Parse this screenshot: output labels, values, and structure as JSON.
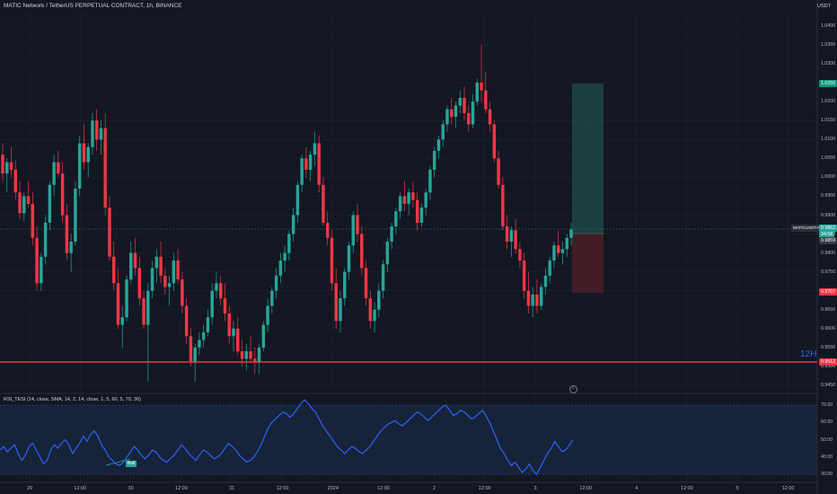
{
  "header": {
    "title": "MATIC Network / TetherUS PERPETUAL CONTRACT, 1h, BINANCE",
    "currency": "USDT"
  },
  "colors": {
    "background": "#131722",
    "up": "#26a69a",
    "down": "#f23645",
    "rsi_line": "#2962ff",
    "support_line": "#f23645",
    "target_zone": "#1e4d4a",
    "stop_zone": "#4a1f26"
  },
  "price_axis": {
    "ticks": [
      "1.0400",
      "1.0350",
      "1.0300",
      "1.0250",
      "1.0200",
      "1.0150",
      "1.0100",
      "1.0050",
      "1.0000",
      "0.9950",
      "0.9900",
      "0.9850",
      "0.9800",
      "0.9750",
      "0.9700",
      "0.9650",
      "0.9600",
      "0.9550",
      "0.9500",
      "0.9450"
    ],
    "target_label": "1.0250",
    "symbol_label": "MATICUSDT.P",
    "current_price": "0.9862",
    "countdown": "34:58",
    "entry_label": "0.9859",
    "stop_label": "0.9707",
    "support_label": "0.9512"
  },
  "time_axis": {
    "ticks": [
      "29",
      "12:00",
      "30",
      "12:00",
      "31",
      "12:00",
      "2024",
      "12:00",
      "2",
      "12:00",
      "3",
      "12:00",
      "4",
      "12:00",
      "5",
      "12:00"
    ]
  },
  "annotation": {
    "timeframe_tag": "12H",
    "bull_label": "Bull",
    "flag_glyph": "F"
  },
  "rsi": {
    "title": "RSI_TESI (14, close, SMA, 14, 2, 14, close, 1, 5, 60, 5, 70, 30)",
    "ticks": [
      "70.00",
      "60.00",
      "50.00",
      "40.00",
      "30.00"
    ],
    "values": [
      44,
      46,
      43,
      45,
      47,
      42,
      38,
      41,
      46,
      48,
      44,
      40,
      36,
      38,
      44,
      47,
      45,
      48,
      50,
      47,
      42,
      45,
      48,
      52,
      49,
      53,
      55,
      52,
      47,
      44,
      40,
      38,
      36,
      35,
      37,
      40,
      43,
      46,
      44,
      41,
      39,
      41,
      44,
      43,
      40,
      38,
      37,
      39,
      41,
      44,
      47,
      45,
      42,
      40,
      38,
      41,
      44,
      43,
      41,
      39,
      40,
      42,
      45,
      48,
      46,
      44,
      41,
      39,
      37,
      38,
      40,
      43,
      47,
      52,
      57,
      60,
      62,
      64,
      66,
      65,
      63,
      65,
      68,
      71,
      73,
      71,
      68,
      66,
      62,
      58,
      55,
      52,
      49,
      46,
      44,
      42,
      44,
      46,
      45,
      43,
      42,
      44,
      46,
      49,
      52,
      55,
      57,
      59,
      60,
      61,
      59,
      58,
      60,
      62,
      64,
      66,
      65,
      63,
      61,
      63,
      65,
      67,
      69,
      70,
      67,
      64,
      65,
      67,
      66,
      64,
      62,
      63,
      65,
      67,
      64,
      60,
      55,
      50,
      45,
      42,
      38,
      35,
      37,
      34,
      31,
      33,
      36,
      32,
      30,
      34,
      38,
      42,
      45,
      49,
      46,
      43,
      44,
      47,
      50
    ]
  },
  "candles": [
    [
      1.006,
      1.009,
      0.999,
      1.001
    ],
    [
      1.001,
      1.005,
      0.996,
      1.004
    ],
    [
      1.004,
      1.008,
      1.0,
      1.002
    ],
    [
      1.002,
      1.0045,
      0.994,
      0.996
    ],
    [
      0.996,
      0.999,
      0.989,
      0.9905
    ],
    [
      0.9905,
      0.996,
      0.9885,
      0.995
    ],
    [
      0.995,
      0.999,
      0.992,
      0.993
    ],
    [
      0.993,
      0.996,
      0.982,
      0.984
    ],
    [
      0.984,
      0.987,
      0.97,
      0.972
    ],
    [
      0.972,
      0.98,
      0.97,
      0.979
    ],
    [
      0.979,
      0.99,
      0.977,
      0.988
    ],
    [
      0.988,
      0.999,
      0.986,
      0.998
    ],
    [
      0.998,
      1.006,
      0.995,
      1.004
    ],
    [
      1.004,
      1.007,
      1.0,
      1.001
    ],
    [
      1.001,
      1.004,
      0.988,
      0.99
    ],
    [
      0.99,
      0.993,
      0.978,
      0.98
    ],
    [
      0.98,
      0.985,
      0.975,
      0.983
    ],
    [
      0.983,
      0.999,
      0.982,
      0.997
    ],
    [
      0.997,
      1.011,
      0.995,
      1.009
    ],
    [
      1.009,
      1.014,
      1.002,
      1.004
    ],
    [
      1.004,
      1.009,
      1.0,
      1.008
    ],
    [
      1.008,
      1.017,
      1.006,
      1.015
    ],
    [
      1.015,
      1.018,
      1.007,
      1.01
    ],
    [
      1.01,
      1.015,
      1.006,
      1.013
    ],
    [
      1.013,
      1.017,
      0.99,
      0.992
    ],
    [
      0.992,
      0.995,
      0.978,
      0.979
    ],
    [
      0.979,
      0.983,
      0.97,
      0.972
    ],
    [
      0.972,
      0.976,
      0.96,
      0.961
    ],
    [
      0.961,
      0.966,
      0.955,
      0.963
    ],
    [
      0.963,
      0.974,
      0.962,
      0.973
    ],
    [
      0.973,
      0.983,
      0.972,
      0.98
    ],
    [
      0.98,
      0.984,
      0.974,
      0.976
    ],
    [
      0.976,
      0.979,
      0.966,
      0.968
    ],
    [
      0.968,
      0.97,
      0.96,
      0.961
    ],
    [
      0.961,
      0.972,
      0.946,
      0.97
    ],
    [
      0.97,
      0.978,
      0.968,
      0.976
    ],
    [
      0.976,
      0.981,
      0.972,
      0.979
    ],
    [
      0.979,
      0.983,
      0.972,
      0.974
    ],
    [
      0.974,
      0.976,
      0.969,
      0.971
    ],
    [
      0.971,
      0.974,
      0.966,
      0.972
    ],
    [
      0.972,
      0.98,
      0.97,
      0.978
    ],
    [
      0.978,
      0.981,
      0.972,
      0.973
    ],
    [
      0.973,
      0.975,
      0.964,
      0.966
    ],
    [
      0.966,
      0.968,
      0.956,
      0.958
    ],
    [
      0.958,
      0.96,
      0.95,
      0.951
    ],
    [
      0.951,
      0.956,
      0.946,
      0.955
    ],
    [
      0.955,
      0.959,
      0.953,
      0.957
    ],
    [
      0.957,
      0.961,
      0.955,
      0.959
    ],
    [
      0.959,
      0.965,
      0.958,
      0.963
    ],
    [
      0.963,
      0.972,
      0.961,
      0.97
    ],
    [
      0.97,
      0.975,
      0.968,
      0.972
    ],
    [
      0.972,
      0.974,
      0.966,
      0.968
    ],
    [
      0.968,
      0.972,
      0.962,
      0.964
    ],
    [
      0.964,
      0.966,
      0.956,
      0.958
    ],
    [
      0.958,
      0.962,
      0.954,
      0.96
    ],
    [
      0.96,
      0.963,
      0.953,
      0.954
    ],
    [
      0.954,
      0.957,
      0.95,
      0.952
    ],
    [
      0.952,
      0.956,
      0.949,
      0.954
    ],
    [
      0.954,
      0.958,
      0.951,
      0.952
    ],
    [
      0.952,
      0.955,
      0.948,
      0.951
    ],
    [
      0.951,
      0.956,
      0.948,
      0.955
    ],
    [
      0.955,
      0.962,
      0.954,
      0.961
    ],
    [
      0.961,
      0.968,
      0.959,
      0.966
    ],
    [
      0.966,
      0.971,
      0.964,
      0.97
    ],
    [
      0.97,
      0.976,
      0.968,
      0.974
    ],
    [
      0.974,
      0.98,
      0.972,
      0.978
    ],
    [
      0.978,
      0.982,
      0.975,
      0.98
    ],
    [
      0.98,
      0.986,
      0.978,
      0.985
    ],
    [
      0.985,
      0.992,
      0.983,
      0.99
    ],
    [
      0.99,
      0.999,
      0.988,
      0.998
    ],
    [
      0.998,
      1.006,
      0.996,
      1.005
    ],
    [
      1.005,
      1.008,
      1.0,
      1.002
    ],
    [
      1.002,
      1.007,
      0.999,
      1.006
    ],
    [
      1.006,
      1.012,
      1.003,
      1.009
    ],
    [
      1.009,
      1.011,
      0.996,
      0.998
    ],
    [
      0.998,
      1.0,
      0.987,
      0.988
    ],
    [
      0.988,
      0.991,
      0.982,
      0.984
    ],
    [
      0.984,
      0.986,
      0.97,
      0.972
    ],
    [
      0.972,
      0.976,
      0.96,
      0.962
    ],
    [
      0.962,
      0.97,
      0.959,
      0.968
    ],
    [
      0.968,
      0.976,
      0.966,
      0.975
    ],
    [
      0.975,
      0.983,
      0.973,
      0.982
    ],
    [
      0.982,
      0.991,
      0.98,
      0.99
    ],
    [
      0.99,
      0.993,
      0.983,
      0.985
    ],
    [
      0.985,
      0.987,
      0.974,
      0.976
    ],
    [
      0.976,
      0.978,
      0.966,
      0.968
    ],
    [
      0.968,
      0.97,
      0.96,
      0.962
    ],
    [
      0.962,
      0.967,
      0.959,
      0.965
    ],
    [
      0.965,
      0.972,
      0.963,
      0.97
    ],
    [
      0.97,
      0.978,
      0.968,
      0.977
    ],
    [
      0.977,
      0.984,
      0.975,
      0.983
    ],
    [
      0.983,
      0.988,
      0.981,
      0.987
    ],
    [
      0.987,
      0.992,
      0.985,
      0.991
    ],
    [
      0.991,
      0.996,
      0.989,
      0.995
    ],
    [
      0.995,
      0.999,
      0.991,
      0.993
    ],
    [
      0.993,
      0.997,
      0.99,
      0.996
    ],
    [
      0.996,
      0.999,
      0.992,
      0.994
    ],
    [
      0.994,
      0.996,
      0.986,
      0.988
    ],
    [
      0.988,
      0.993,
      0.987,
      0.992
    ],
    [
      0.992,
      0.997,
      0.99,
      0.996
    ],
    [
      0.996,
      1.003,
      0.994,
      1.002
    ],
    [
      1.002,
      1.008,
      1.0,
      1.007
    ],
    [
      1.007,
      1.011,
      1.005,
      1.01
    ],
    [
      1.01,
      1.015,
      1.008,
      1.014
    ],
    [
      1.014,
      1.019,
      1.012,
      1.018
    ],
    [
      1.018,
      1.021,
      1.014,
      1.016
    ],
    [
      1.016,
      1.02,
      1.013,
      1.019
    ],
    [
      1.019,
      1.023,
      1.017,
      1.021
    ],
    [
      1.021,
      1.024,
      1.015,
      1.017
    ],
    [
      1.017,
      1.019,
      1.012,
      1.014
    ],
    [
      1.014,
      1.022,
      1.013,
      1.02
    ],
    [
      1.02,
      1.026,
      1.019,
      1.025
    ],
    [
      1.025,
      1.035,
      1.02,
      1.023
    ],
    [
      1.023,
      1.028,
      1.017,
      1.018
    ],
    [
      1.018,
      1.02,
      1.012,
      1.014
    ],
    [
      1.014,
      1.015,
      1.004,
      1.005
    ],
    [
      1.005,
      1.007,
      0.997,
      0.998
    ],
    [
      0.998,
      1.0,
      0.986,
      0.987
    ],
    [
      0.987,
      0.99,
      0.981,
      0.983
    ],
    [
      0.983,
      0.987,
      0.979,
      0.986
    ],
    [
      0.986,
      0.989,
      0.98,
      0.981
    ],
    [
      0.981,
      0.983,
      0.976,
      0.978
    ],
    [
      0.978,
      0.98,
      0.968,
      0.97
    ],
    [
      0.97,
      0.975,
      0.964,
      0.966
    ],
    [
      0.966,
      0.971,
      0.963,
      0.969
    ],
    [
      0.969,
      0.973,
      0.964,
      0.966
    ],
    [
      0.966,
      0.972,
      0.965,
      0.971
    ],
    [
      0.971,
      0.976,
      0.969,
      0.974
    ],
    [
      0.974,
      0.979,
      0.972,
      0.978
    ],
    [
      0.978,
      0.983,
      0.976,
      0.982
    ],
    [
      0.982,
      0.986,
      0.979,
      0.98
    ],
    [
      0.98,
      0.983,
      0.977,
      0.981
    ],
    [
      0.981,
      0.985,
      0.979,
      0.984
    ],
    [
      0.984,
      0.988,
      0.982,
      0.9862
    ]
  ]
}
